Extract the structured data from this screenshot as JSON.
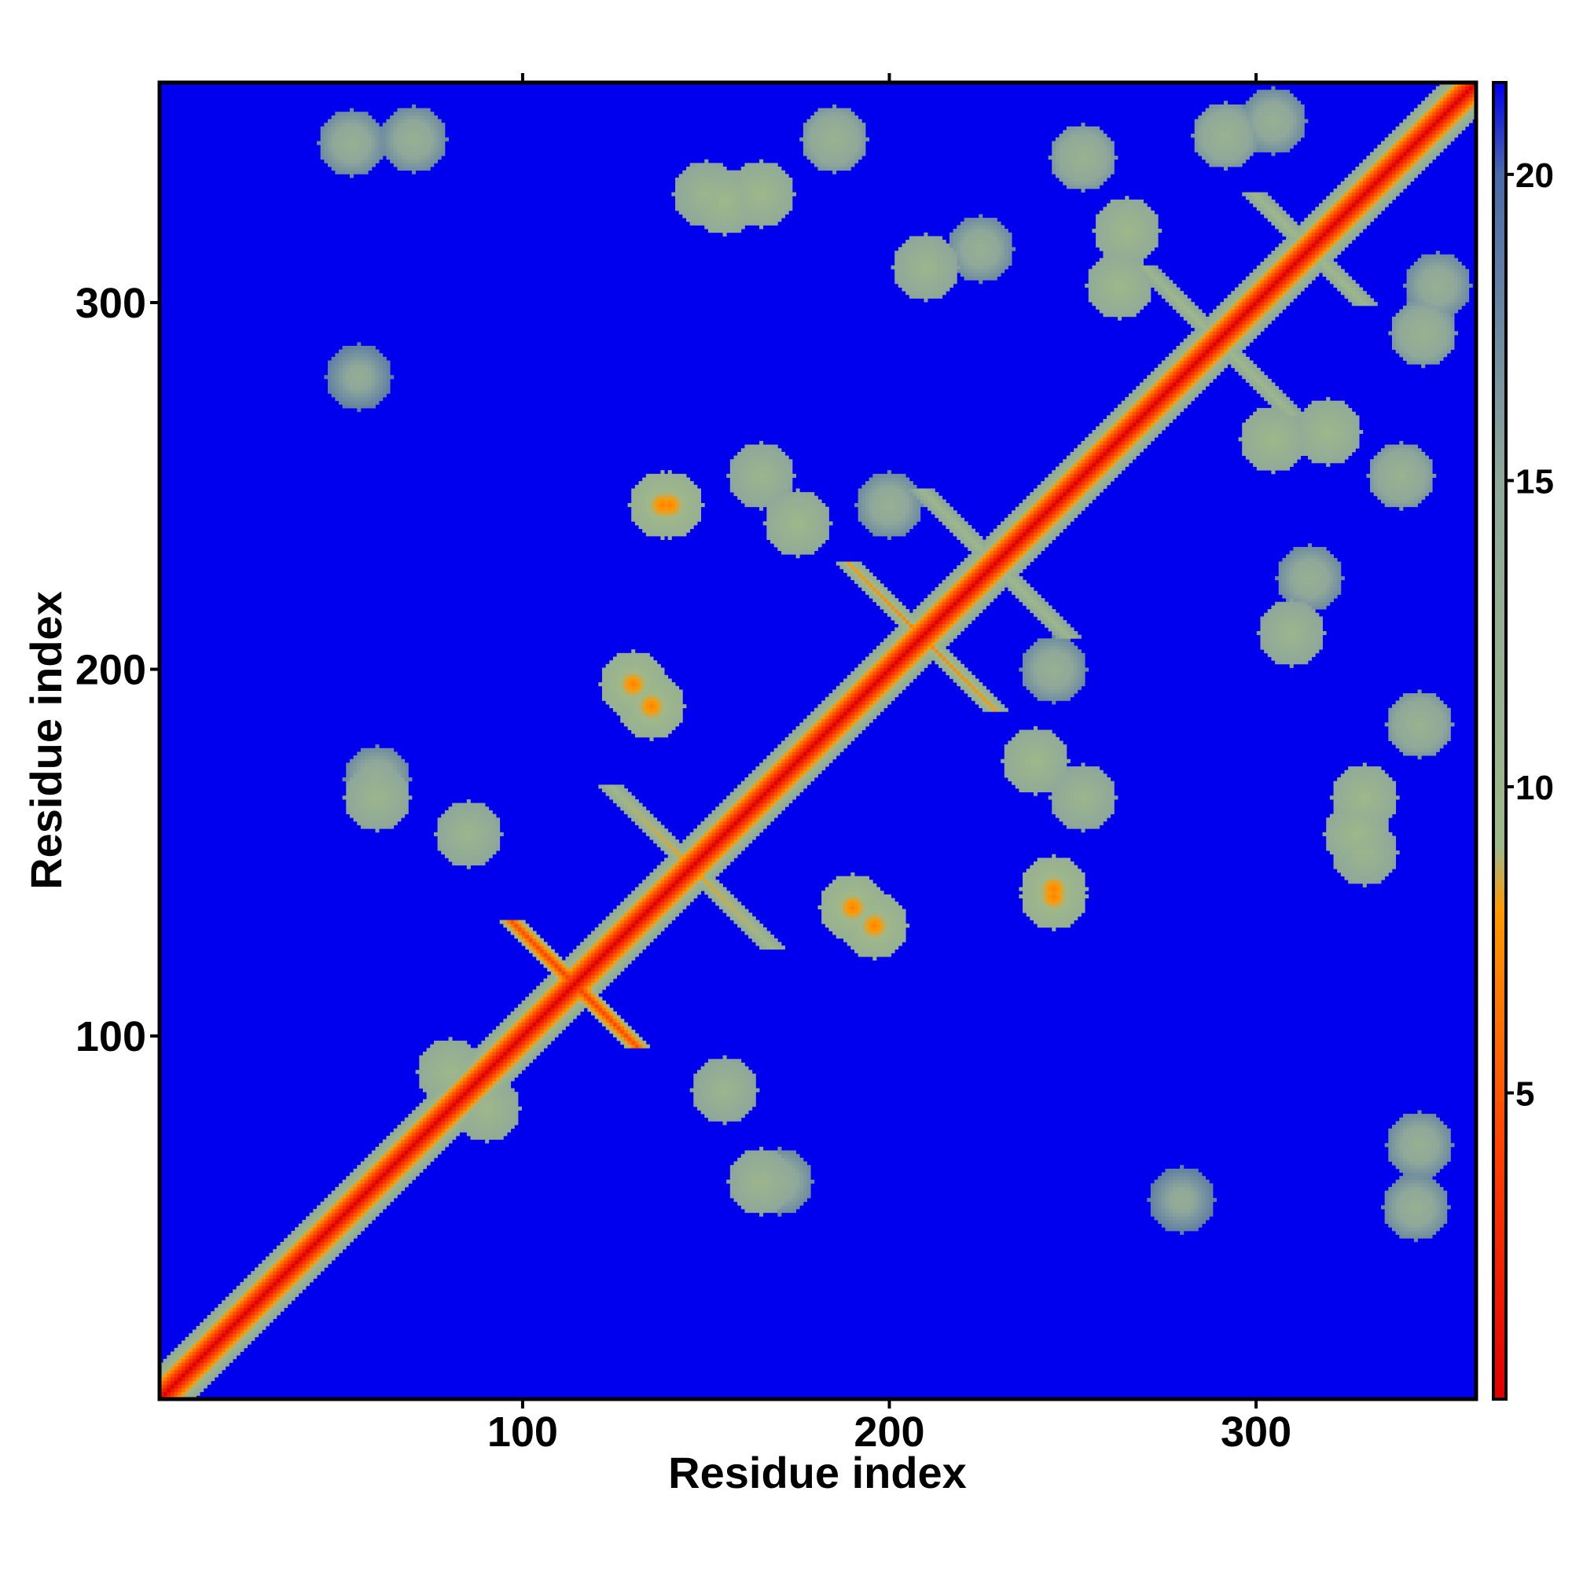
{
  "chart_data": {
    "type": "heatmap",
    "xlabel": "Residue index",
    "ylabel": "Residue index",
    "xlim": [
      1,
      360
    ],
    "ylim": [
      1,
      360
    ],
    "x_ticks": [
      100,
      200,
      300
    ],
    "y_ticks": [
      100,
      200,
      300
    ],
    "x_tick_labels": [
      "100",
      "200",
      "300"
    ],
    "y_tick_labels": [
      "100",
      "200",
      "300"
    ],
    "colorbar": {
      "range": [
        0,
        21.5
      ],
      "ticks": [
        5,
        10,
        15,
        20
      ],
      "tick_labels": [
        "5",
        "10",
        "15",
        "20"
      ],
      "stops": [
        {
          "value": 0,
          "color": "#e00000"
        },
        {
          "value": 4,
          "color": "#ff4000"
        },
        {
          "value": 8,
          "color": "#ff9a00"
        },
        {
          "value": 9,
          "color": "#9fb88a"
        },
        {
          "value": 15,
          "color": "#8fa89a"
        },
        {
          "value": 20,
          "color": "#4a6aa8"
        },
        {
          "value": 21.5,
          "color": "#0000ee"
        }
      ]
    },
    "background_value": 21.5,
    "background_color": "#0000ee",
    "diagonal_value": 0,
    "contact_features": [
      {
        "kind": "diagonal",
        "from": 1,
        "to": 360,
        "value": 0
      },
      {
        "kind": "antiparallel",
        "center": [
          114,
          114
        ],
        "length": 34,
        "value": 4
      },
      {
        "kind": "antiparallel",
        "center": [
          146,
          146
        ],
        "length": 44,
        "value": 8
      },
      {
        "kind": "antiparallel",
        "center": [
          209,
          209
        ],
        "length": 40,
        "value": 7
      },
      {
        "kind": "antiparallel",
        "center": [
          229,
          229
        ],
        "length": 40,
        "value": 9
      },
      {
        "kind": "antiparallel",
        "center": [
          290,
          290
        ],
        "length": 40,
        "value": 9
      },
      {
        "kind": "antiparallel",
        "center": [
          315,
          315
        ],
        "length": 30,
        "value": 9
      },
      {
        "kind": "cluster",
        "x": 53,
        "y": 344,
        "value": 12
      },
      {
        "kind": "cluster",
        "x": 155,
        "y": 328,
        "value": 9
      },
      {
        "kind": "cluster",
        "x": 185,
        "y": 345,
        "value": 11
      },
      {
        "kind": "cluster",
        "x": 225,
        "y": 315,
        "value": 12
      },
      {
        "kind": "cluster",
        "x": 265,
        "y": 320,
        "value": 9
      },
      {
        "kind": "cluster",
        "x": 292,
        "y": 346,
        "value": 11
      },
      {
        "kind": "cluster",
        "x": 350,
        "y": 305,
        "value": 12
      },
      {
        "kind": "cluster",
        "x": 55,
        "y": 280,
        "value": 13
      },
      {
        "kind": "cluster",
        "x": 140,
        "y": 245,
        "value": 7
      },
      {
        "kind": "cluster",
        "x": 165,
        "y": 253,
        "value": 10
      },
      {
        "kind": "cluster",
        "x": 200,
        "y": 245,
        "value": 12
      },
      {
        "kind": "cluster",
        "x": 305,
        "y": 263,
        "value": 9
      },
      {
        "kind": "cluster",
        "x": 340,
        "y": 253,
        "value": 11
      },
      {
        "kind": "cluster",
        "x": 310,
        "y": 210,
        "value": 10
      },
      {
        "kind": "cluster",
        "x": 130,
        "y": 196,
        "value": 7
      },
      {
        "kind": "cluster",
        "x": 60,
        "y": 165,
        "value": 10
      },
      {
        "kind": "cluster",
        "x": 240,
        "y": 175,
        "value": 9
      },
      {
        "kind": "cluster",
        "x": 330,
        "y": 165,
        "value": 9
      },
      {
        "kind": "cluster",
        "x": 190,
        "y": 135,
        "value": 7
      },
      {
        "kind": "cluster",
        "x": 245,
        "y": 138,
        "value": 7
      },
      {
        "kind": "cluster",
        "x": 330,
        "y": 150,
        "value": 10
      },
      {
        "kind": "cluster",
        "x": 155,
        "y": 85,
        "value": 10
      },
      {
        "kind": "cluster",
        "x": 170,
        "y": 60,
        "value": 12
      },
      {
        "kind": "cluster",
        "x": 345,
        "y": 70,
        "value": 12
      },
      {
        "kind": "cluster",
        "x": 280,
        "y": 55,
        "value": 13
      },
      {
        "kind": "cluster",
        "x": 80,
        "y": 90,
        "value": 9
      }
    ]
  }
}
